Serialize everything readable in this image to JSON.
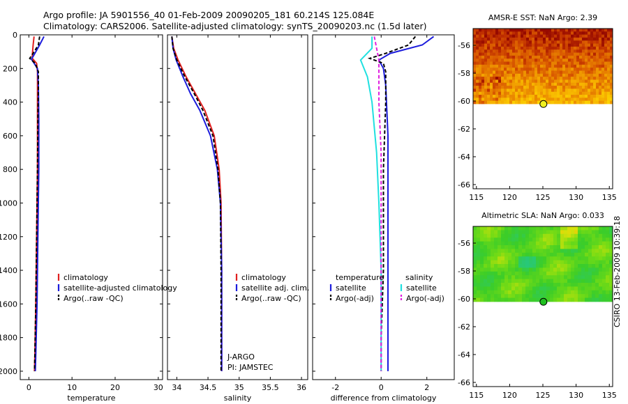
{
  "header": {
    "line1": "Argo profile: JA 5901556_40 01-Feb-2009 20090205_181 60.214S 125.084E",
    "line2": "Climatology: CARS2006. Satellite-adjusted climatology: synTS_20090203.nc (1.5d later)"
  },
  "side_stamp": "CSIRO 13-Feb-2009 10:39:18",
  "colors": {
    "red": "#e02020",
    "blue": "#1c1cdc",
    "black": "#000000",
    "cyan": "#1fe0e0",
    "magenta": "#e020e0",
    "marker_sst": "#f0f020",
    "marker_sla": "#20c020"
  },
  "chart_data": [
    {
      "id": "temperature",
      "type": "line",
      "xlabel": "temperature",
      "ylabel": "",
      "xlim": [
        -2,
        31
      ],
      "ylim": [
        0,
        2050
      ],
      "y_reversed": true,
      "xticks": [
        0,
        10,
        20,
        30
      ],
      "yticks": [
        0,
        200,
        400,
        600,
        800,
        1000,
        1200,
        1400,
        1600,
        1800,
        2000
      ],
      "legend": [
        "climatology",
        "satellite-adjusted climatology",
        "Argo(..raw -QC)"
      ],
      "series": [
        {
          "name": "climatology",
          "color": "red",
          "style": "solid",
          "points": [
            [
              1.2,
              10
            ],
            [
              1.0,
              60
            ],
            [
              0.8,
              120
            ],
            [
              0.8,
              140
            ],
            [
              1.8,
              170
            ],
            [
              2.0,
              220
            ],
            [
              2.0,
              300
            ],
            [
              2.0,
              500
            ],
            [
              2.0,
              800
            ],
            [
              1.8,
              1200
            ],
            [
              1.6,
              1600
            ],
            [
              1.4,
              1900
            ],
            [
              1.3,
              2000
            ]
          ]
        },
        {
          "name": "satellite-adjusted climatology",
          "color": "blue",
          "style": "solid",
          "points": [
            [
              3.5,
              10
            ],
            [
              2.5,
              60
            ],
            [
              1.4,
              110
            ],
            [
              0.6,
              145
            ],
            [
              2.0,
              200
            ],
            [
              2.2,
              300
            ],
            [
              2.3,
              500
            ],
            [
              2.3,
              800
            ],
            [
              2.1,
              1200
            ],
            [
              1.9,
              1600
            ],
            [
              1.6,
              1900
            ],
            [
              1.5,
              2000
            ]
          ]
        },
        {
          "name": "Argo(..raw -QC)",
          "color": "black",
          "style": "dashed",
          "points": [
            [
              2.5,
              10
            ],
            [
              2.2,
              60
            ],
            [
              1.0,
              110
            ],
            [
              0.2,
              140
            ],
            [
              1.5,
              170
            ],
            [
              2.2,
              220
            ],
            [
              2.2,
              300
            ],
            [
              2.1,
              500
            ],
            [
              2.0,
              800
            ],
            [
              1.8,
              1200
            ],
            [
              1.6,
              1600
            ],
            [
              1.4,
              1900
            ],
            [
              1.3,
              2000
            ]
          ]
        }
      ]
    },
    {
      "id": "salinity",
      "type": "line",
      "xlabel": "salinity",
      "ylabel": "",
      "xlim": [
        33.85,
        36.1
      ],
      "ylim": [
        0,
        2050
      ],
      "y_reversed": true,
      "xticks": [
        34,
        34.5,
        35,
        35.5,
        36
      ],
      "xticklabels": [
        "34",
        "34.5",
        "35",
        "35.5",
        "36"
      ],
      "legend": [
        "climatology",
        "satellite adj. clim.",
        "Argo(..raw -QC)"
      ],
      "annotations": [
        "J-ARGO",
        "PI: JAMSTEC"
      ],
      "series": [
        {
          "name": "climatology",
          "color": "red",
          "style": "solid",
          "points": [
            [
              33.92,
              10
            ],
            [
              33.95,
              80
            ],
            [
              34.02,
              150
            ],
            [
              34.15,
              250
            ],
            [
              34.3,
              350
            ],
            [
              34.45,
              450
            ],
            [
              34.6,
              600
            ],
            [
              34.68,
              800
            ],
            [
              34.71,
              1000
            ],
            [
              34.72,
              1400
            ],
            [
              34.72,
              1800
            ],
            [
              34.72,
              2000
            ]
          ]
        },
        {
          "name": "satellite adj. clim.",
          "color": "blue",
          "style": "solid",
          "points": [
            [
              33.92,
              10
            ],
            [
              33.94,
              80
            ],
            [
              33.99,
              150
            ],
            [
              34.1,
              250
            ],
            [
              34.22,
              350
            ],
            [
              34.37,
              450
            ],
            [
              34.54,
              600
            ],
            [
              34.65,
              800
            ],
            [
              34.7,
              1000
            ],
            [
              34.72,
              1400
            ],
            [
              34.72,
              1800
            ],
            [
              34.72,
              2000
            ]
          ]
        },
        {
          "name": "Argo(..raw -QC)",
          "color": "black",
          "style": "dashed",
          "points": [
            [
              33.92,
              10
            ],
            [
              33.94,
              80
            ],
            [
              34.0,
              150
            ],
            [
              34.13,
              250
            ],
            [
              34.28,
              350
            ],
            [
              34.42,
              450
            ],
            [
              34.58,
              600
            ],
            [
              34.66,
              800
            ],
            [
              34.7,
              1000
            ],
            [
              34.71,
              1400
            ],
            [
              34.71,
              1800
            ],
            [
              34.71,
              2000
            ]
          ]
        }
      ]
    },
    {
      "id": "difference",
      "type": "line",
      "xlabel": "difference from climatology",
      "ylabel": "",
      "xlim": [
        -3,
        3.2
      ],
      "ylim": [
        0,
        2050
      ],
      "y_reversed": true,
      "xticks": [
        -2,
        0,
        2
      ],
      "legend_left_title": "temperature",
      "legend_right_title": "salinity",
      "legend": [
        "satellite",
        "Argo(-adj)",
        "satellite",
        "Argo(-adj)"
      ],
      "series": [
        {
          "name": "temperature satellite",
          "color": "blue",
          "style": "solid",
          "points": [
            [
              2.3,
              10
            ],
            [
              1.8,
              60
            ],
            [
              0.4,
              110
            ],
            [
              -0.1,
              150
            ],
            [
              0.1,
              200
            ],
            [
              0.2,
              300
            ],
            [
              0.3,
              600
            ],
            [
              0.3,
              1000
            ],
            [
              0.3,
              1400
            ],
            [
              0.3,
              1800
            ],
            [
              0.3,
              2000
            ]
          ]
        },
        {
          "name": "temperature Argo(-adj)",
          "color": "black",
          "style": "dashed",
          "points": [
            [
              1.5,
              10
            ],
            [
              1.2,
              60
            ],
            [
              0.2,
              110
            ],
            [
              -0.5,
              140
            ],
            [
              0.1,
              170
            ],
            [
              0.2,
              220
            ],
            [
              0.2,
              400
            ],
            [
              0.1,
              800
            ],
            [
              0.1,
              1400
            ],
            [
              0.0,
              1800
            ],
            [
              0.0,
              2000
            ]
          ]
        },
        {
          "name": "salinity satellite",
          "color": "cyan",
          "style": "solid",
          "points": [
            [
              -0.4,
              10
            ],
            [
              -0.4,
              80
            ],
            [
              -0.9,
              150
            ],
            [
              -0.6,
              250
            ],
            [
              -0.4,
              400
            ],
            [
              -0.2,
              700
            ],
            [
              -0.1,
              1000
            ],
            [
              0.0,
              1400
            ],
            [
              0.0,
              1800
            ],
            [
              0.0,
              2000
            ]
          ]
        },
        {
          "name": "salinity Argo(-adj)",
          "color": "magenta",
          "style": "dashed",
          "points": [
            [
              -0.3,
              10
            ],
            [
              -0.2,
              80
            ],
            [
              -0.1,
              150
            ],
            [
              -0.1,
              250
            ],
            [
              -0.1,
              400
            ],
            [
              0.0,
              700
            ],
            [
              0.0,
              1000
            ],
            [
              0.0,
              1400
            ],
            [
              0.0,
              1800
            ],
            [
              0.0,
              2000
            ]
          ]
        }
      ]
    },
    {
      "id": "amsre_sst",
      "type": "heatmap",
      "title": "AMSR-E SST: NaN Argo: 2.39",
      "xlim": [
        114.5,
        135.5
      ],
      "ylim": [
        -66.3,
        -54.8
      ],
      "xticks": [
        115,
        120,
        125,
        130,
        135
      ],
      "yticks": [
        -56,
        -58,
        -60,
        -62,
        -64,
        -66
      ],
      "data_extent": {
        "xmin": 114.5,
        "xmax": 135.5,
        "ymin": -60.2,
        "ymax": -54.8
      },
      "colormap": "hot",
      "marker": {
        "lon": 125.084,
        "lat": -60.214,
        "color": "marker_sst"
      }
    },
    {
      "id": "altimetric_sla",
      "type": "heatmap",
      "title": "Altimetric SLA: NaN Argo: 0.033",
      "xlim": [
        114.5,
        135.5
      ],
      "ylim": [
        -66.3,
        -54.8
      ],
      "xticks": [
        115,
        120,
        125,
        130,
        135
      ],
      "yticks": [
        -56,
        -58,
        -60,
        -62,
        -64,
        -66
      ],
      "data_extent": {
        "xmin": 114.5,
        "xmax": 135.5,
        "ymin": -60.2,
        "ymax": -54.8
      },
      "colormap": "green",
      "marker": {
        "lon": 125.084,
        "lat": -60.214,
        "color": "marker_sla"
      }
    }
  ]
}
